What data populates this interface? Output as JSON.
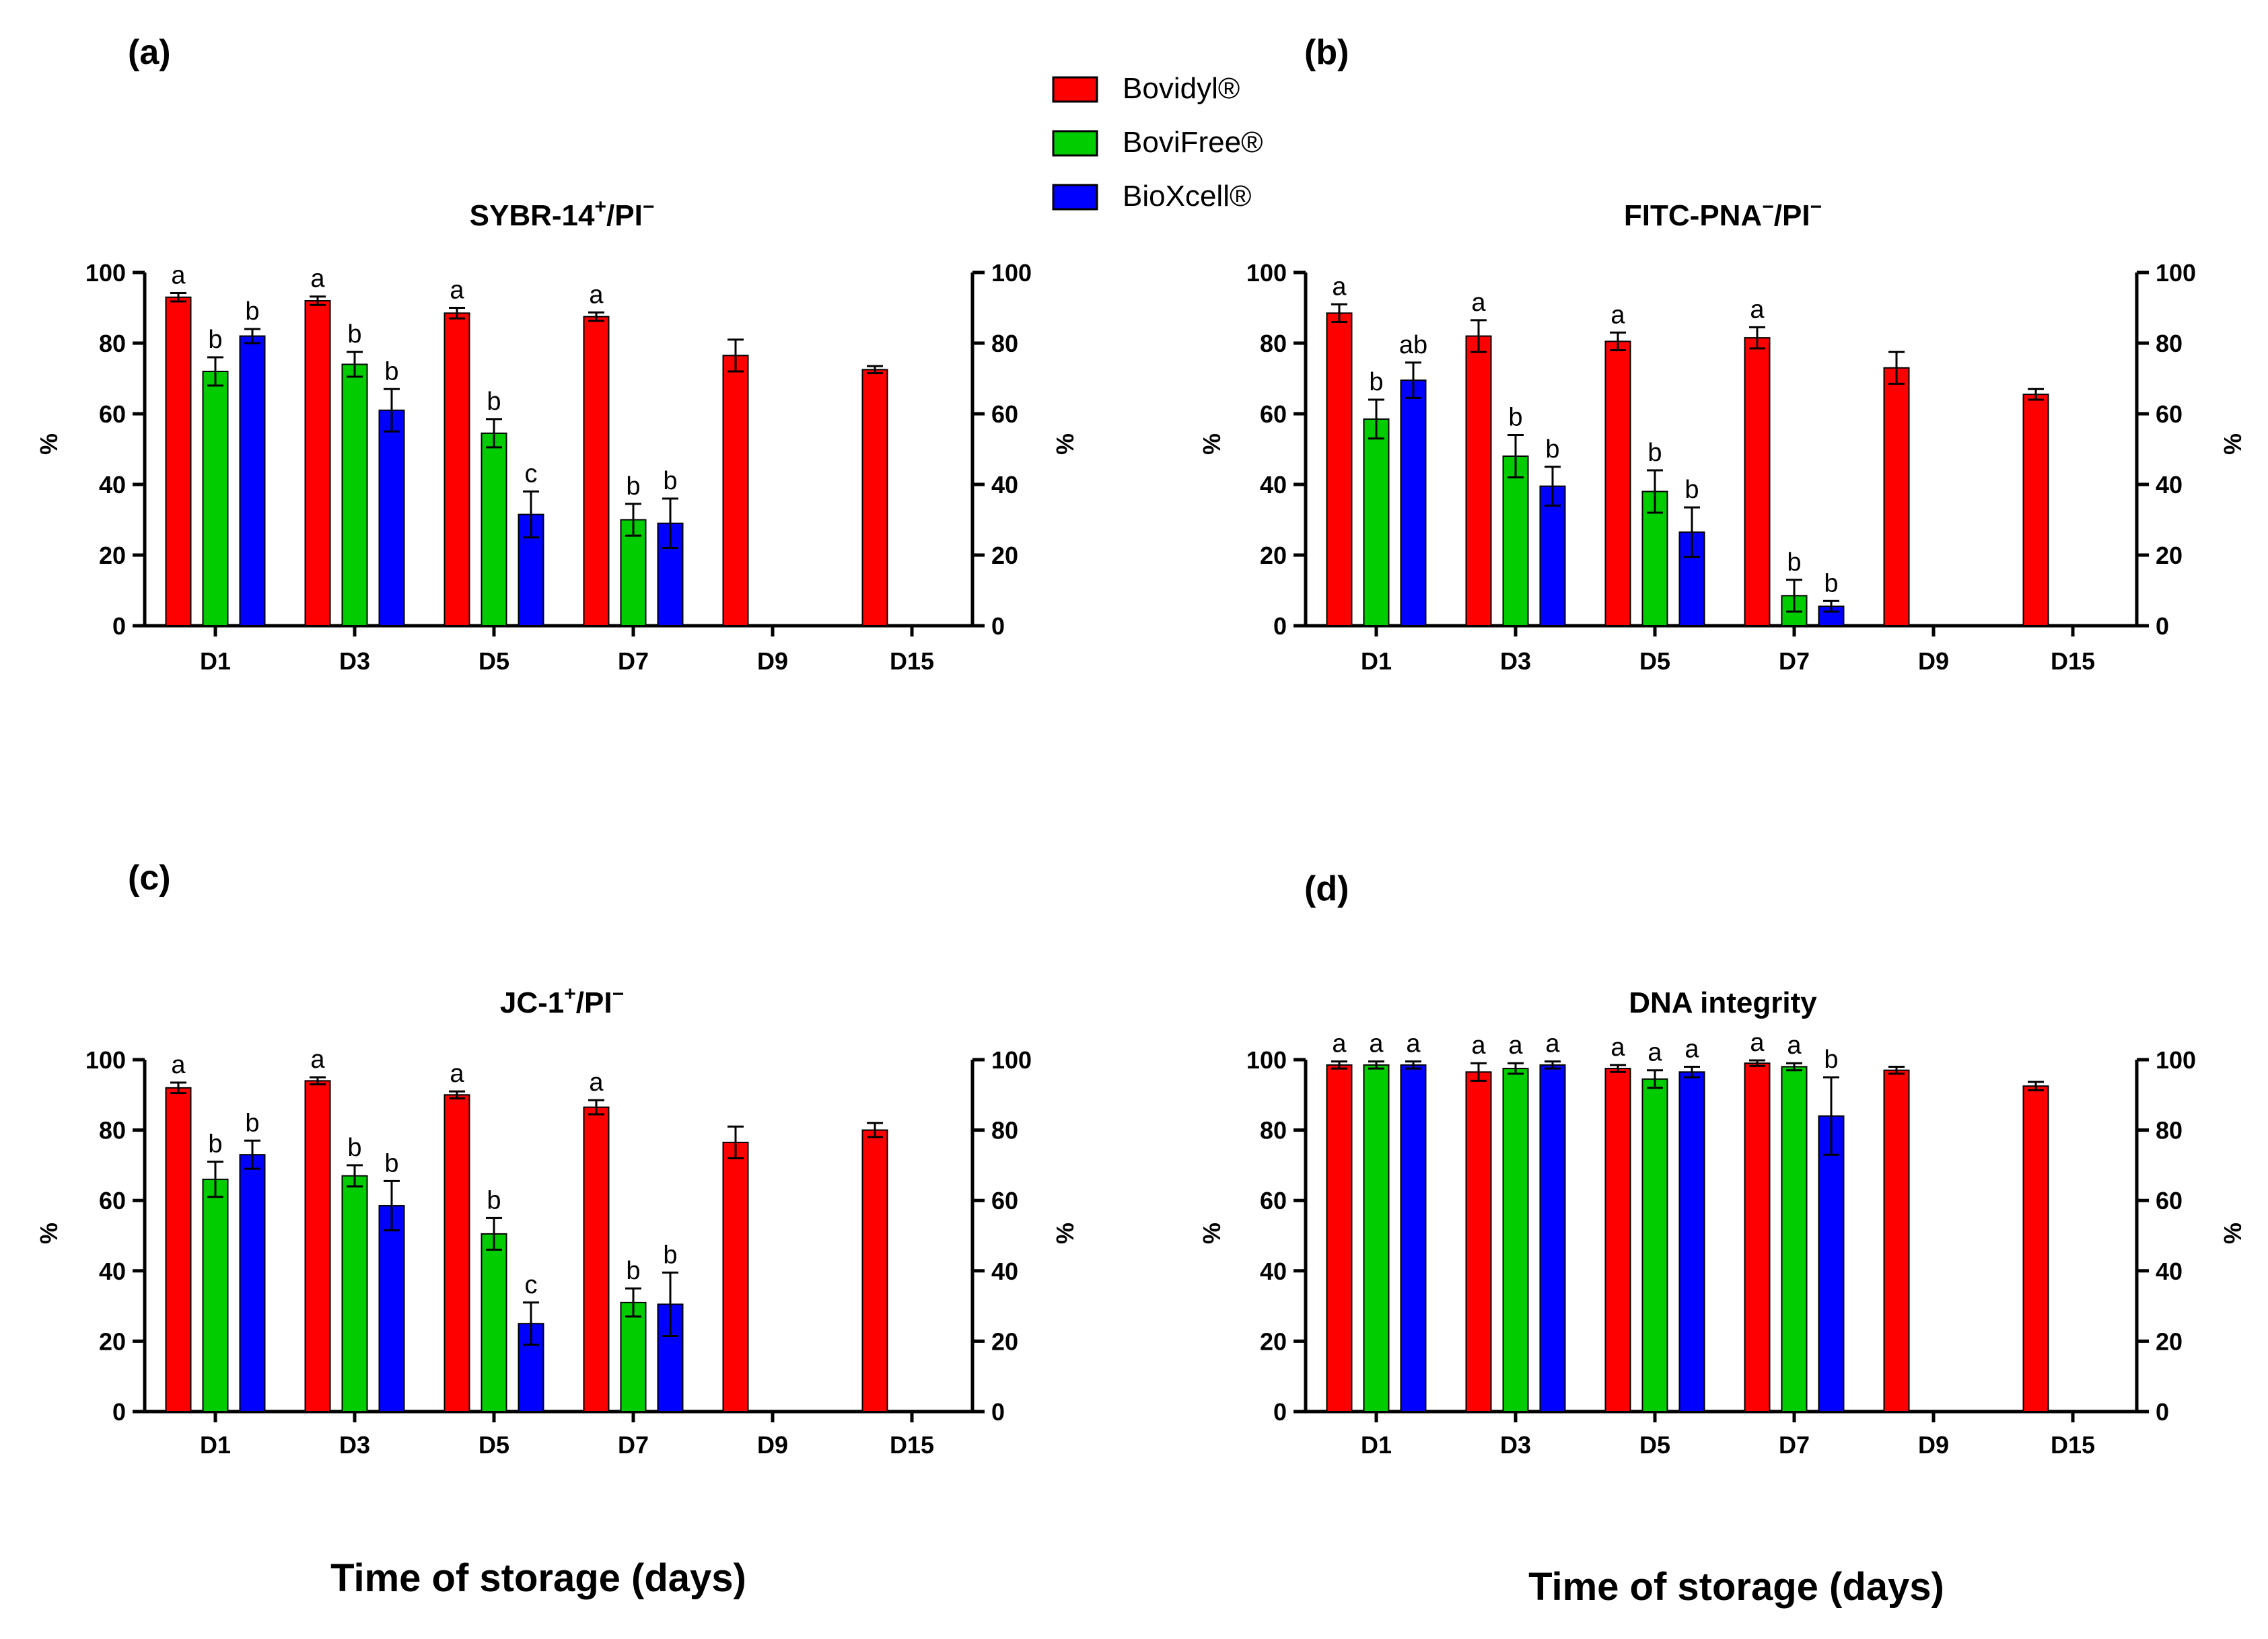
{
  "legend": {
    "items": [
      {
        "name": "Bovidyl®",
        "color": "#ff0000"
      },
      {
        "name": "BoviFree®",
        "color": "#00cc00"
      },
      {
        "name": "BioXcell®",
        "color": "#0000ff"
      }
    ]
  },
  "xlabel_text": "Time of storage (days)",
  "chart_data": [
    {
      "type": "bar",
      "panel_label": "(a)",
      "title": "SYBR-14",
      "title_parts": [
        "SYBR-14",
        "+",
        "/PI",
        "−"
      ],
      "categories": [
        "D1",
        "D3",
        "D5",
        "D7",
        "D9",
        "D15"
      ],
      "ylabel": "%",
      "ylabel_right": "%",
      "ylim": [
        0,
        100
      ],
      "yticks": [
        "0",
        "20",
        "40",
        "60",
        "80",
        "100"
      ],
      "series": [
        {
          "name": "Bovidyl®",
          "color": "#ff0000",
          "values": [
            93,
            92,
            88.5,
            87.5,
            76.5,
            72.5
          ],
          "errors": [
            1.2,
            1.2,
            1.5,
            1.2,
            4.5,
            1.0
          ],
          "letters": [
            "a",
            "a",
            "a",
            "a",
            "",
            ""
          ]
        },
        {
          "name": "BoviFree®",
          "color": "#00cc00",
          "values": [
            72,
            74,
            54.5,
            30,
            null,
            null
          ],
          "errors": [
            4,
            3.5,
            4,
            4.5,
            null,
            null
          ],
          "letters": [
            "b",
            "b",
            "b",
            "b",
            "",
            ""
          ]
        },
        {
          "name": "BioXcell®",
          "color": "#0000ff",
          "values": [
            82,
            61,
            31.5,
            29,
            null,
            null
          ],
          "errors": [
            2,
            6,
            6.5,
            7,
            null,
            null
          ],
          "letters": [
            "b",
            "b",
            "c",
            "b",
            "",
            ""
          ]
        }
      ]
    },
    {
      "type": "bar",
      "panel_label": "(b)",
      "title": "FITC-PNA",
      "title_parts": [
        "FITC-PNA",
        "−",
        "/PI",
        "−"
      ],
      "categories": [
        "D1",
        "D3",
        "D5",
        "D7",
        "D9",
        "D15"
      ],
      "ylabel": "%",
      "ylabel_right": "%",
      "ylim": [
        0,
        100
      ],
      "yticks": [
        "0",
        "20",
        "40",
        "60",
        "80",
        "100"
      ],
      "series": [
        {
          "name": "Bovidyl®",
          "color": "#ff0000",
          "values": [
            88.5,
            82,
            80.5,
            81.5,
            73,
            65.5
          ],
          "errors": [
            2.5,
            4.5,
            2.5,
            3,
            4.5,
            1.5
          ],
          "letters": [
            "a",
            "a",
            "a",
            "a",
            "",
            ""
          ]
        },
        {
          "name": "BoviFree®",
          "color": "#00cc00",
          "values": [
            58.5,
            48,
            38,
            8.5,
            null,
            null
          ],
          "errors": [
            5.5,
            6,
            6,
            4.5,
            null,
            null
          ],
          "letters": [
            "b",
            "b",
            "b",
            "b",
            "",
            ""
          ]
        },
        {
          "name": "BioXcell®",
          "color": "#0000ff",
          "values": [
            69.5,
            39.5,
            26.5,
            5.5,
            null,
            null
          ],
          "errors": [
            5,
            5.5,
            7,
            1.5,
            null,
            null
          ],
          "letters": [
            "ab",
            "b",
            "b",
            "b",
            "",
            ""
          ]
        }
      ]
    },
    {
      "type": "bar",
      "panel_label": "(c)",
      "title": "JC-1",
      "title_parts": [
        "JC-1",
        "+",
        "/PI",
        "−"
      ],
      "categories": [
        "D1",
        "D3",
        "D5",
        "D7",
        "D9",
        "D15"
      ],
      "ylabel": "%",
      "ylabel_right": "%",
      "ylim": [
        0,
        100
      ],
      "yticks": [
        "0",
        "20",
        "40",
        "60",
        "80",
        "100"
      ],
      "series": [
        {
          "name": "Bovidyl®",
          "color": "#ff0000",
          "values": [
            92,
            94,
            90,
            86.5,
            76.5,
            80
          ],
          "errors": [
            1.5,
            1,
            1,
            2,
            4.5,
            2
          ],
          "letters": [
            "a",
            "a",
            "a",
            "a",
            "",
            ""
          ]
        },
        {
          "name": "BoviFree®",
          "color": "#00cc00",
          "values": [
            66,
            67,
            50.5,
            31,
            null,
            null
          ],
          "errors": [
            5,
            3,
            4.5,
            4,
            null,
            null
          ],
          "letters": [
            "b",
            "b",
            "b",
            "b",
            "",
            ""
          ]
        },
        {
          "name": "BioXcell®",
          "color": "#0000ff",
          "values": [
            73,
            58.5,
            25,
            30.5,
            null,
            null
          ],
          "errors": [
            4,
            7,
            6,
            9,
            null,
            null
          ],
          "letters": [
            "b",
            "b",
            "c",
            "b",
            "",
            ""
          ]
        }
      ]
    },
    {
      "type": "bar",
      "panel_label": "(d)",
      "title": "DNA integrity",
      "title_parts": [
        "DNA integrity",
        "",
        "",
        ""
      ],
      "categories": [
        "D1",
        "D3",
        "D5",
        "D7",
        "D9",
        "D15"
      ],
      "ylabel": "%",
      "ylabel_right": "%",
      "ylim": [
        0,
        100
      ],
      "yticks": [
        "0",
        "20",
        "40",
        "60",
        "80",
        "100"
      ],
      "series": [
        {
          "name": "Bovidyl®",
          "color": "#ff0000",
          "values": [
            98.5,
            96.5,
            97.5,
            99,
            97,
            92.5
          ],
          "errors": [
            1,
            2.5,
            1,
            0.8,
            1,
            1.2
          ],
          "letters": [
            "a",
            "a",
            "a",
            "a",
            "",
            ""
          ]
        },
        {
          "name": "BoviFree®",
          "color": "#00cc00",
          "values": [
            98.5,
            97.5,
            94.5,
            98,
            null,
            null
          ],
          "errors": [
            1,
            1.5,
            2.5,
            1,
            null,
            null
          ],
          "letters": [
            "a",
            "a",
            "a",
            "a",
            "",
            ""
          ]
        },
        {
          "name": "BioXcell®",
          "color": "#0000ff",
          "values": [
            98.5,
            98.5,
            96.5,
            84,
            null,
            null
          ],
          "errors": [
            1,
            1,
            1.5,
            11,
            null,
            null
          ],
          "letters": [
            "a",
            "a",
            "a",
            "b",
            "",
            ""
          ]
        }
      ]
    }
  ]
}
